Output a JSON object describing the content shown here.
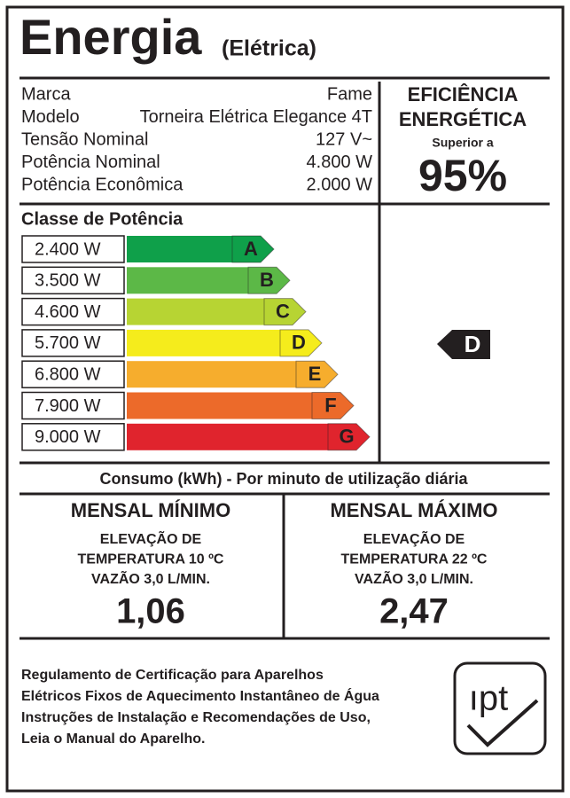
{
  "header": {
    "title": "Energia",
    "subtitle": "(Elétrica)"
  },
  "specs": [
    {
      "label": "Marca",
      "value": "Fame"
    },
    {
      "label": "Modelo",
      "value": "Torneira Elétrica Elegance 4T"
    },
    {
      "label": "Tensão Nominal",
      "value": "127 V~"
    },
    {
      "label": "Potência Nominal",
      "value": "4.800 W"
    },
    {
      "label": "Potência Econômica",
      "value": "2.000 W"
    }
  ],
  "efficiency": {
    "line1": "EFICIÊNCIA",
    "line2": "ENERGÉTICA",
    "note": "Superior a",
    "value": "95%"
  },
  "classes": {
    "title": "Classe de Potência",
    "rows": [
      {
        "power": "2.400 W",
        "letter": "A",
        "color": "#0fa04a"
      },
      {
        "power": "3.500 W",
        "letter": "B",
        "color": "#5cb847"
      },
      {
        "power": "4.600 W",
        "letter": "C",
        "color": "#b7d433"
      },
      {
        "power": "5.700 W",
        "letter": "D",
        "color": "#f5ec1c"
      },
      {
        "power": "6.800 W",
        "letter": "E",
        "color": "#f6ad2d"
      },
      {
        "power": "7.900 W",
        "letter": "F",
        "color": "#ec6a2a"
      },
      {
        "power": "9.000 W",
        "letter": "G",
        "color": "#e0242d"
      }
    ],
    "rating": "D"
  },
  "consumption": {
    "title": "Consumo (kWh) - Por minuto de utilização diária",
    "minimum": {
      "heading": "MENSAL MÍNIMO",
      "lines": [
        "ELEVAÇÃO DE",
        "TEMPERATURA 10 ºC",
        "VAZÃO 3,0 L/MIN."
      ],
      "value": "1,06"
    },
    "maximum": {
      "heading": "MENSAL MÁXIMO",
      "lines": [
        "ELEVAÇÃO DE",
        "TEMPERATURA 22 ºC",
        "VAZÃO 3,0 L/MIN."
      ],
      "value": "2,47"
    }
  },
  "footer": {
    "lines": [
      "Regulamento de Certificação para Aparelhos",
      "Elétricos Fixos de Aquecimento Instantâneo de Água",
      "Instruções de Instalação e Recomendações de Uso,",
      "Leia o Manual do Aparelho."
    ],
    "logo": "ıpt"
  }
}
